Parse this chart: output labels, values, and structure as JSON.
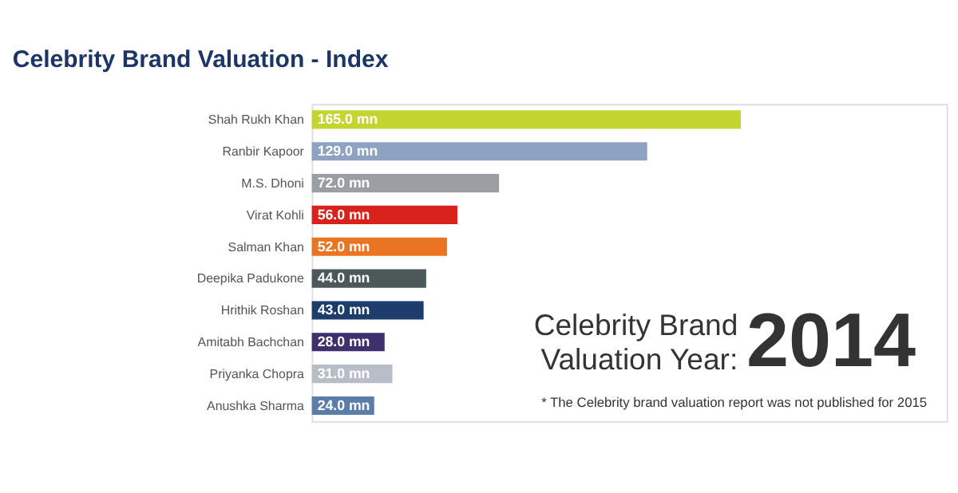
{
  "chart_data": {
    "type": "bar",
    "orientation": "horizontal",
    "title": "Celebrity Brand Valuation - Index",
    "categories": [
      "Shah Rukh Khan",
      "Ranbir Kapoor",
      "M.S. Dhoni",
      "Virat Kohli",
      "Salman Khan",
      "Deepika Padukone",
      "Hrithik Roshan",
      "Amitabh Bachchan",
      "Priyanka Chopra",
      "Anushka Sharma"
    ],
    "values": [
      165.0,
      129.0,
      72.0,
      56.0,
      52.0,
      44.0,
      43.0,
      28.0,
      31.0,
      24.0
    ],
    "colors": [
      "#c5d530",
      "#8ea3c1",
      "#9b9fa4",
      "#d9221c",
      "#ea7421",
      "#4d5858",
      "#1c3c6b",
      "#3e2f6d",
      "#b7bec8",
      "#5a7ea8"
    ],
    "value_labels": [
      "165.0 mn",
      "129.0 mn",
      "72.0 mn",
      "56.0 mn",
      "52.0 mn",
      "44.0 mn",
      "43.0 mn",
      "28.0 mn",
      "31.0 mn",
      "24.0 mn"
    ],
    "annotations": [
      "Celebrity Brand",
      "Valuation Year:",
      "2014",
      "* The Celebrity brand valuation report was not published for 2015"
    ],
    "legend": false,
    "grid": false
  }
}
